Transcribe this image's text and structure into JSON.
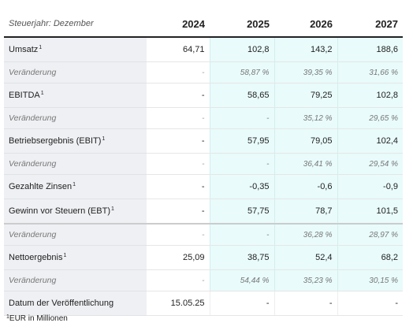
{
  "header": {
    "label": "Steuerjahr: Dezember",
    "years": [
      "2024",
      "2025",
      "2026",
      "2027"
    ]
  },
  "rows": [
    {
      "label": "Umsatz",
      "sup": "1",
      "values": [
        "64,71",
        "102,8",
        "143,2",
        "188,6"
      ]
    },
    {
      "label": "Veränderung",
      "sup": "",
      "values": [
        "-",
        "58,87 %",
        "39,35 %",
        "31,66 %"
      ]
    },
    {
      "label": "EBITDA",
      "sup": "1",
      "values": [
        "-",
        "58,65",
        "79,25",
        "102,8"
      ]
    },
    {
      "label": "Veränderung",
      "sup": "",
      "values": [
        "-",
        "-",
        "35,12 %",
        "29,65 %"
      ]
    },
    {
      "label": "Betriebsergebnis (EBIT)",
      "sup": "1",
      "values": [
        "-",
        "57,95",
        "79,05",
        "102,4"
      ]
    },
    {
      "label": "Veränderung",
      "sup": "",
      "values": [
        "-",
        "-",
        "36,41 %",
        "29,54 %"
      ]
    },
    {
      "label": "Gezahlte Zinsen",
      "sup": "1",
      "values": [
        "-",
        "-0,35",
        "-0,6",
        "-0,9"
      ]
    },
    {
      "label": "Gewinn vor Steuern (EBT)",
      "sup": "1",
      "values": [
        "-",
        "57,75",
        "78,7",
        "101,5"
      ]
    },
    {
      "label": "Veränderung",
      "sup": "",
      "values": [
        "-",
        "-",
        "36,28 %",
        "28,97 %"
      ]
    },
    {
      "label": "Nettoergebnis",
      "sup": "1",
      "values": [
        "25,09",
        "38,75",
        "52,4",
        "68,2"
      ]
    },
    {
      "label": "Veränderung",
      "sup": "",
      "values": [
        "-",
        "54,44 %",
        "35,23 %",
        "30,15 %"
      ]
    },
    {
      "label": "Datum der Veröffentlichung",
      "sup": "",
      "values": [
        "15.05.25",
        "-",
        "-",
        "-"
      ]
    }
  ],
  "footnote": {
    "sup": "1",
    "text": "EUR in Millionen"
  }
}
